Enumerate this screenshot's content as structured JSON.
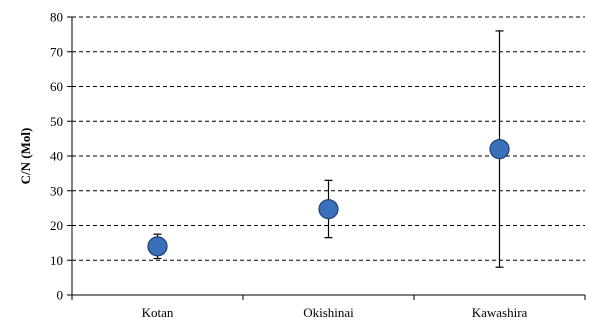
{
  "chart_data": {
    "type": "scatter",
    "title": "",
    "xlabel": "",
    "ylabel": "C/N (Mol)",
    "ylim": [
      0,
      80
    ],
    "yticks": [
      0,
      10,
      20,
      30,
      40,
      50,
      60,
      70,
      80
    ],
    "grid": "horizontal dashed",
    "legend": "none",
    "categories": [
      "Kotan",
      "Okishinai",
      "Kawashira"
    ],
    "series": [
      {
        "values": [
          14,
          24.7,
          42
        ],
        "error_low": [
          10.5,
          16.5,
          8
        ],
        "error_high": [
          17.5,
          33,
          76
        ],
        "color": "#3a70b9"
      }
    ]
  }
}
